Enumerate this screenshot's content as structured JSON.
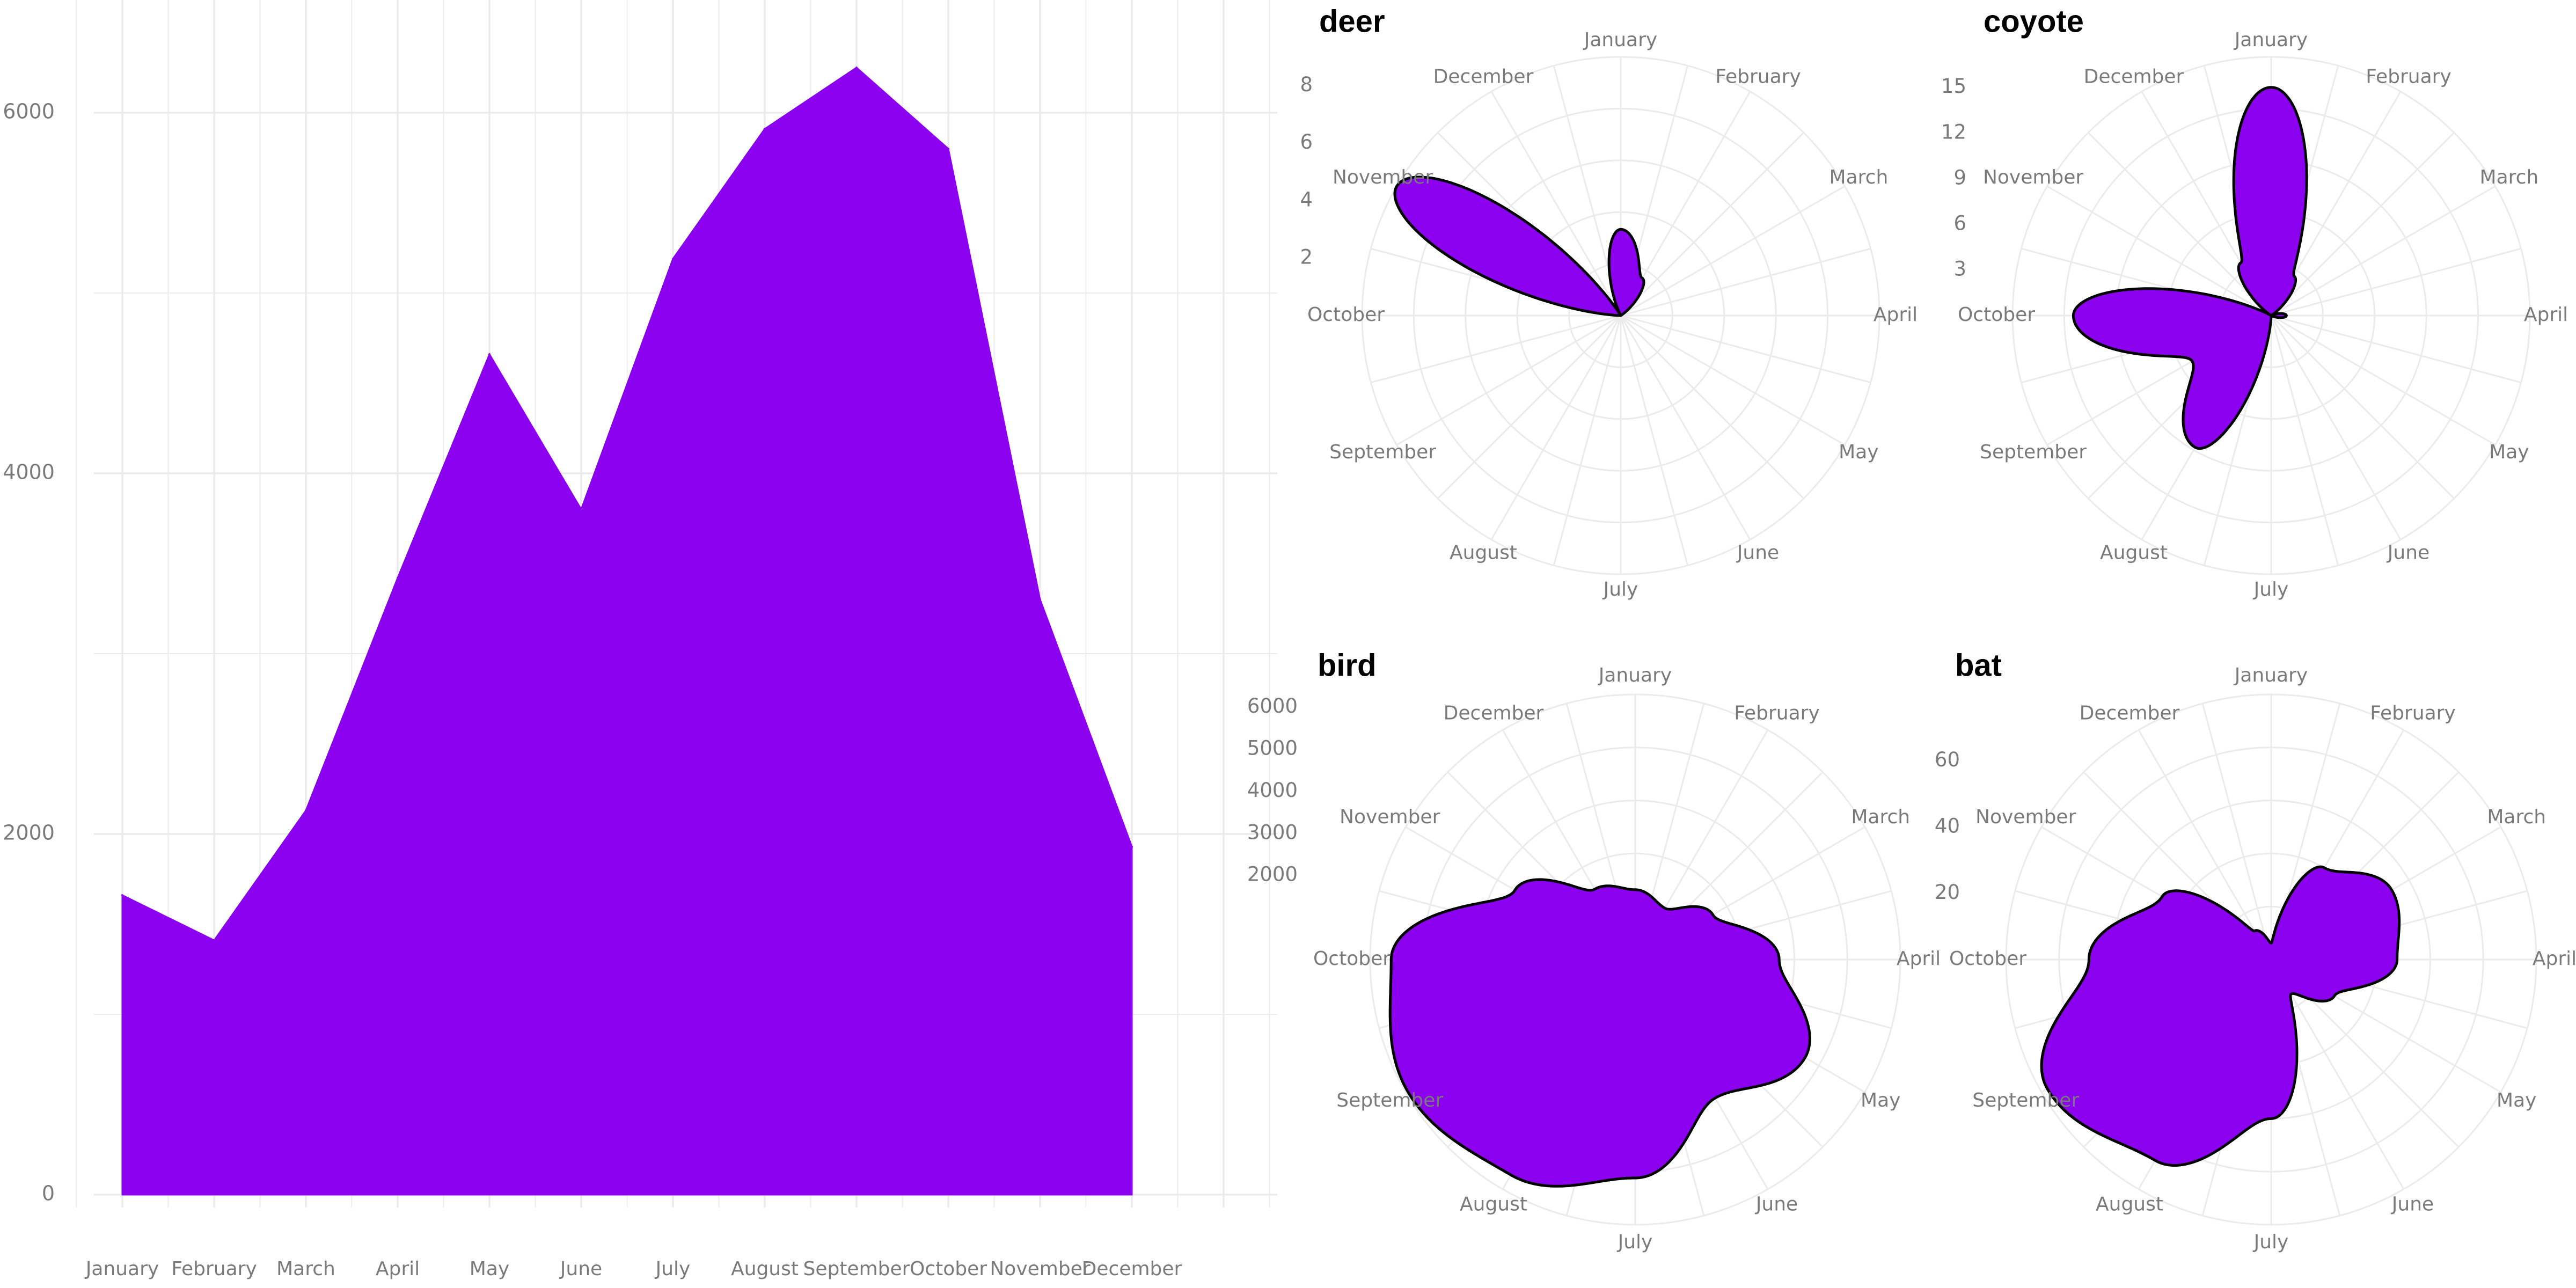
{
  "colors": {
    "fill": "#8B00EE",
    "outline": "#000000",
    "grid": "#ebebeb",
    "text": "#7a7a7a",
    "title": "#000000"
  },
  "chart_data": [
    {
      "type": "area",
      "title": "",
      "xlabel": "",
      "ylabel": "",
      "categories": [
        "January",
        "February",
        "March",
        "April",
        "May",
        "June",
        "July",
        "August",
        "September",
        "October",
        "November",
        "December"
      ],
      "values": [
        1660,
        1410,
        2130,
        3420,
        4660,
        3800,
        5190,
        5910,
        6250,
        5800,
        3300,
        1930
      ],
      "y_ticks": [
        "0",
        "2000",
        "4000",
        "6000"
      ],
      "ylim": [
        0,
        6300
      ],
      "grid": true
    },
    {
      "type": "polar-area",
      "title": "deer",
      "categories": [
        "January",
        "February",
        "March",
        "April",
        "May",
        "June",
        "July",
        "August",
        "September",
        "October",
        "November",
        "December"
      ],
      "values": [
        3,
        1.5,
        0,
        0,
        0,
        0,
        0,
        0,
        0,
        0,
        9,
        0
      ],
      "r_ticks": [
        "2",
        "4",
        "6",
        "8"
      ],
      "rlim": [
        0,
        9
      ],
      "grid": true
    },
    {
      "type": "polar-area",
      "title": "coyote",
      "categories": [
        "January",
        "February",
        "March",
        "April",
        "May",
        "June",
        "July",
        "August",
        "September",
        "October",
        "November",
        "December"
      ],
      "values": [
        15,
        3,
        0,
        1,
        0,
        0,
        0,
        10,
        6,
        13,
        0,
        4
      ],
      "r_ticks": [
        "3",
        "6",
        "9",
        "12",
        "15"
      ],
      "rlim": [
        0,
        17
      ],
      "grid": true
    },
    {
      "type": "polar-area",
      "title": "bird",
      "categories": [
        "January",
        "February",
        "March",
        "April",
        "May",
        "June",
        "July",
        "August",
        "September",
        "October",
        "November",
        "December"
      ],
      "values": [
        1660,
        1410,
        2130,
        3420,
        4660,
        3800,
        5190,
        5910,
        6250,
        5800,
        3300,
        1930
      ],
      "r_ticks": [
        "2000",
        "3000",
        "4000",
        "5000",
        "6000"
      ],
      "rlim": [
        0,
        6300
      ],
      "grid": true
    },
    {
      "type": "polar-area",
      "title": "bat",
      "categories": [
        "January",
        "February",
        "March",
        "April",
        "May",
        "June",
        "July",
        "August",
        "September",
        "October",
        "November",
        "December"
      ],
      "values": [
        5,
        32,
        42,
        38,
        22,
        12,
        48,
        70,
        78,
        55,
        38,
        10
      ],
      "r_ticks": [
        "20",
        "40",
        "60"
      ],
      "rlim": [
        0,
        80
      ],
      "grid": true
    }
  ]
}
